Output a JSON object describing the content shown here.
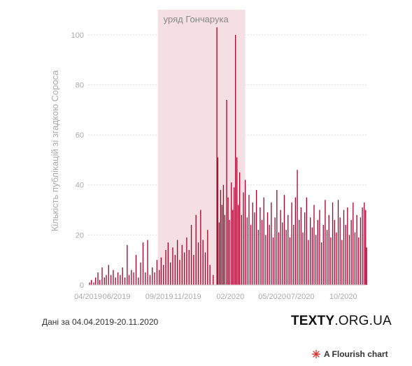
{
  "chart_data": {
    "type": "bar",
    "title": "",
    "xlabel": "",
    "ylabel": "Кількість публікацій зі згадкою Сороса",
    "ylim": [
      0,
      110
    ],
    "y_ticks": [
      0,
      20,
      40,
      60,
      80,
      100
    ],
    "x_range": [
      "2019-04-04",
      "2020-11-20"
    ],
    "x_ticks": [
      {
        "date": "2019-04-01",
        "label": "04/2019"
      },
      {
        "date": "2019-06-01",
        "label": "06/2019"
      },
      {
        "date": "2019-09-01",
        "label": "09/2019"
      },
      {
        "date": "2019-11-01",
        "label": "11/2019"
      },
      {
        "date": "2020-02-01",
        "label": "02/2020"
      },
      {
        "date": "2020-05-01",
        "label": "05/2020"
      },
      {
        "date": "2020-07-01",
        "label": "07/2020"
      },
      {
        "date": "2020-10-01",
        "label": "10/2020"
      }
    ],
    "bar_color": "#a4002b",
    "grid": true,
    "band": {
      "start": "2019-08-29",
      "end": "2020-03-04",
      "label": "уряд Гончарука",
      "color": "#f4dfe3"
    },
    "series": [
      {
        "values": [
          [
            "2019-04-04",
            1
          ],
          [
            "2019-04-08",
            2
          ],
          [
            "2019-04-13",
            1
          ],
          [
            "2019-04-17",
            3
          ],
          [
            "2019-04-22",
            5
          ],
          [
            "2019-04-26",
            2
          ],
          [
            "2019-05-01",
            7
          ],
          [
            "2019-05-06",
            3
          ],
          [
            "2019-05-10",
            4
          ],
          [
            "2019-05-15",
            8
          ],
          [
            "2019-05-20",
            4
          ],
          [
            "2019-05-25",
            6
          ],
          [
            "2019-05-30",
            3
          ],
          [
            "2019-06-04",
            5
          ],
          [
            "2019-06-09",
            4
          ],
          [
            "2019-06-14",
            7
          ],
          [
            "2019-06-19",
            3
          ],
          [
            "2019-06-24",
            16
          ],
          [
            "2019-06-28",
            4
          ],
          [
            "2019-07-03",
            6
          ],
          [
            "2019-07-08",
            5
          ],
          [
            "2019-07-13",
            12
          ],
          [
            "2019-07-18",
            3
          ],
          [
            "2019-07-23",
            9
          ],
          [
            "2019-07-28",
            17
          ],
          [
            "2019-08-02",
            5
          ],
          [
            "2019-08-07",
            18
          ],
          [
            "2019-08-12",
            4
          ],
          [
            "2019-08-17",
            7
          ],
          [
            "2019-08-22",
            5
          ],
          [
            "2019-08-27",
            10
          ],
          [
            "2019-09-01",
            6
          ],
          [
            "2019-09-05",
            11
          ],
          [
            "2019-09-10",
            8
          ],
          [
            "2019-09-15",
            14
          ],
          [
            "2019-09-20",
            17
          ],
          [
            "2019-09-25",
            9
          ],
          [
            "2019-09-30",
            15
          ],
          [
            "2019-10-05",
            12
          ],
          [
            "2019-10-10",
            18
          ],
          [
            "2019-10-15",
            10
          ],
          [
            "2019-10-20",
            16
          ],
          [
            "2019-10-25",
            13
          ],
          [
            "2019-10-30",
            19
          ],
          [
            "2019-11-04",
            14
          ],
          [
            "2019-11-09",
            24
          ],
          [
            "2019-11-14",
            12
          ],
          [
            "2019-11-19",
            28
          ],
          [
            "2019-11-24",
            17
          ],
          [
            "2019-11-29",
            30
          ],
          [
            "2019-12-04",
            18
          ],
          [
            "2019-12-09",
            13
          ],
          [
            "2019-12-14",
            22
          ],
          [
            "2019-12-19",
            8
          ],
          [
            "2019-12-26",
            4
          ],
          [
            "2020-01-03",
            103
          ],
          [
            "2020-01-05",
            51
          ],
          [
            "2020-01-08",
            25
          ],
          [
            "2020-01-11",
            38
          ],
          [
            "2020-01-14",
            32
          ],
          [
            "2020-01-17",
            40
          ],
          [
            "2020-01-20",
            28
          ],
          [
            "2020-01-24",
            74
          ],
          [
            "2020-01-27",
            35
          ],
          [
            "2020-01-30",
            26
          ],
          [
            "2020-02-03",
            41
          ],
          [
            "2020-02-06",
            30
          ],
          [
            "2020-02-09",
            39
          ],
          [
            "2020-02-12",
            100
          ],
          [
            "2020-02-15",
            51
          ],
          [
            "2020-02-18",
            32
          ],
          [
            "2020-02-21",
            45
          ],
          [
            "2020-02-25",
            28
          ],
          [
            "2020-02-29",
            37
          ],
          [
            "2020-03-04",
            42
          ],
          [
            "2020-03-08",
            27
          ],
          [
            "2020-03-12",
            36
          ],
          [
            "2020-03-16",
            24
          ],
          [
            "2020-03-20",
            33
          ],
          [
            "2020-03-24",
            29
          ],
          [
            "2020-03-28",
            38
          ],
          [
            "2020-04-01",
            22
          ],
          [
            "2020-04-05",
            31
          ],
          [
            "2020-04-09",
            26
          ],
          [
            "2020-04-13",
            35
          ],
          [
            "2020-04-17",
            20
          ],
          [
            "2020-04-21",
            29
          ],
          [
            "2020-04-25",
            24
          ],
          [
            "2020-04-29",
            33
          ],
          [
            "2020-05-03",
            19
          ],
          [
            "2020-05-07",
            27
          ],
          [
            "2020-05-11",
            38
          ],
          [
            "2020-05-15",
            21
          ],
          [
            "2020-05-19",
            30
          ],
          [
            "2020-05-23",
            25
          ],
          [
            "2020-05-27",
            36
          ],
          [
            "2020-05-31",
            22
          ],
          [
            "2020-06-04",
            28
          ],
          [
            "2020-06-08",
            19
          ],
          [
            "2020-06-12",
            33
          ],
          [
            "2020-06-16",
            24
          ],
          [
            "2020-06-20",
            35
          ],
          [
            "2020-06-24",
            46
          ],
          [
            "2020-06-28",
            26
          ],
          [
            "2020-07-02",
            31
          ],
          [
            "2020-07-06",
            21
          ],
          [
            "2020-07-10",
            29
          ],
          [
            "2020-07-14",
            35
          ],
          [
            "2020-07-18",
            18
          ],
          [
            "2020-07-22",
            27
          ],
          [
            "2020-07-26",
            23
          ],
          [
            "2020-07-30",
            32
          ],
          [
            "2020-08-03",
            20
          ],
          [
            "2020-08-07",
            26
          ],
          [
            "2020-08-11",
            30
          ],
          [
            "2020-08-15",
            17
          ],
          [
            "2020-08-19",
            24
          ],
          [
            "2020-08-23",
            34
          ],
          [
            "2020-08-27",
            22
          ],
          [
            "2020-08-31",
            28
          ],
          [
            "2020-09-04",
            19
          ],
          [
            "2020-09-08",
            33
          ],
          [
            "2020-09-12",
            26
          ],
          [
            "2020-09-16",
            21
          ],
          [
            "2020-09-20",
            34
          ],
          [
            "2020-09-24",
            27
          ],
          [
            "2020-09-28",
            18
          ],
          [
            "2020-10-02",
            30
          ],
          [
            "2020-10-06",
            24
          ],
          [
            "2020-10-10",
            31
          ],
          [
            "2020-10-14",
            20
          ],
          [
            "2020-10-18",
            26
          ],
          [
            "2020-10-22",
            33
          ],
          [
            "2020-10-26",
            21
          ],
          [
            "2020-10-30",
            28
          ],
          [
            "2020-11-03",
            19
          ],
          [
            "2020-11-07",
            27
          ],
          [
            "2020-11-11",
            31
          ],
          [
            "2020-11-15",
            33
          ],
          [
            "2020-11-18",
            30
          ],
          [
            "2020-11-20",
            15
          ]
        ]
      }
    ]
  },
  "footer": {
    "note": "Дані за 04.04.2019-20.11.2020",
    "logo_bold": "TEXTY",
    "logo_rest": ".ORG.UA",
    "flourish_label": "A Flourish chart",
    "flourish_color": "#e03b3b"
  }
}
